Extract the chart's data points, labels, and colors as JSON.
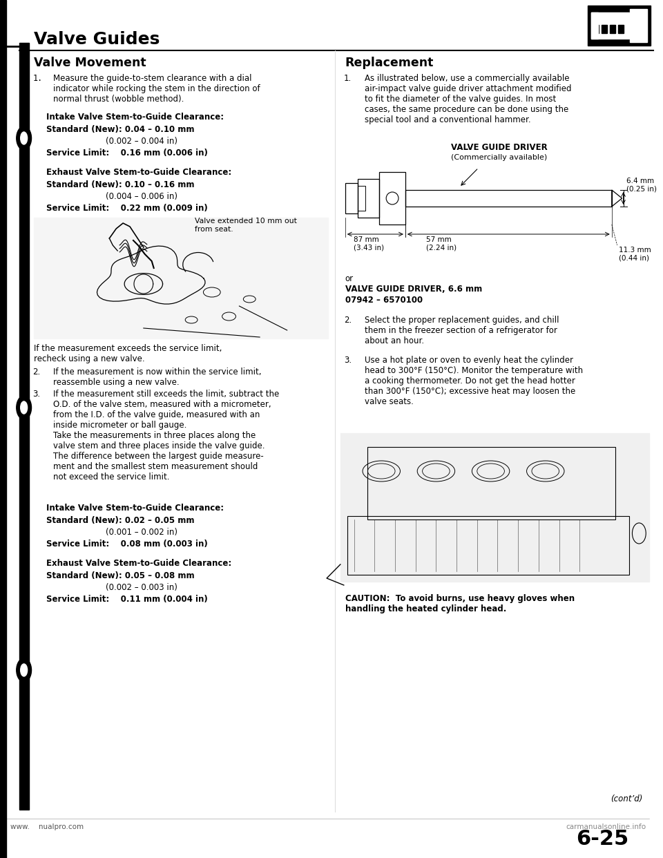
{
  "page_bg": "#ffffff",
  "title": "Valve Guides",
  "left_section_title": "Valve Movement",
  "right_section_title": "Replacement",
  "page_number": "6-25",
  "footer_left": "www.    nualpro.com",
  "footer_right": "carmanualsonline.info",
  "vm": {
    "item1": "Measure the guide-to-stem clearance with a dial\nindicator while rocking the stem in the direction of\nnormal thrust (wobble method).",
    "intake_hdr": "Intake Valve Stem-to-Guide Clearance:",
    "intake_std1": "Standard (New): 0.04 – 0.10 mm",
    "intake_std2": "(0.002 – 0.004 in)",
    "intake_svc": "Service Limit:    0.16 mm (0.006 in)",
    "exhaust_hdr": "Exhaust Valve Stem-to-Guide Clearance:",
    "exhaust_std1": "Standard (New): 0.10 – 0.16 mm",
    "exhaust_std2": "(0.004 – 0.006 in)",
    "exhaust_svc": "Service Limit:    0.22 mm (0.009 in)",
    "valve_note": "Valve extended 10 mm out\nfrom seat.",
    "after_img": "If the measurement exceeds the service limit,\nrecheck using a new valve.",
    "item2": "If the measurement is now within the service limit,\nreassemble using a new valve.",
    "item3": "If the measurement still exceeds the limit, subtract the\nO.D. of the valve stem, measured with a micrometer,\nfrom the I.D. of the valve guide, measured with an\ninside micrometer or ball gauge.\nTake the measurements in three places along the\nvalve stem and three places inside the valve guide.\nThe difference between the largest guide measure-\nment and the smallest stem measurement should\nnot exceed the service limit.",
    "intake2_hdr": "Intake Valve Stem-to-Guide Clearance:",
    "intake2_std1": "Standard (New): 0.02 – 0.05 mm",
    "intake2_std2": "(0.001 – 0.002 in)",
    "intake2_svc": "Service Limit:    0.08 mm (0.003 in)",
    "exhaust2_hdr": "Exhaust Valve Stem-to-Guide Clearance:",
    "exhaust2_std1": "Standard (New): 0.05 – 0.08 mm",
    "exhaust2_std2": "(0.002 – 0.003 in)",
    "exhaust2_svc": "Service Limit:    0.11 mm (0.004 in)"
  },
  "repl": {
    "item1": "As illustrated below, use a commercially available\nair-impact valve guide driver attachment modified\nto fit the diameter of the valve guides. In most\ncases, the same procedure can be done using the\nspecial tool and a conventional hammer.",
    "driver_title": "VALVE GUIDE DRIVER",
    "driver_sub": "(Commercially available)",
    "dim_6mm": "6.4 mm\n(0.25 in)",
    "dim_87mm": "87 mm\n(3.43 in)",
    "dim_57mm": "57 mm\n(2.24 in)",
    "dim_113mm": "11.3 mm\n(0.44 in)",
    "or_line": "or",
    "driver2_title": "VALVE GUIDE DRIVER, 6.6 mm",
    "driver2_num": "07942 – 6570100",
    "item2": "Select the proper replacement guides, and chill\nthem in the freezer section of a refrigerator for\nabout an hour.",
    "item3": "Use a hot plate or oven to evenly heat the cylinder\nhead to 300°F (150°C). Monitor the temperature with\na cooking thermometer. Do not get the head hotter\nthan 300°F (150°C); excessive heat may loosen the\nvalve seats.",
    "caution": "CAUTION:  To avoid burns, use heavy gloves when\nhandling the heated cylinder head.",
    "contd": "(cont’d)"
  }
}
